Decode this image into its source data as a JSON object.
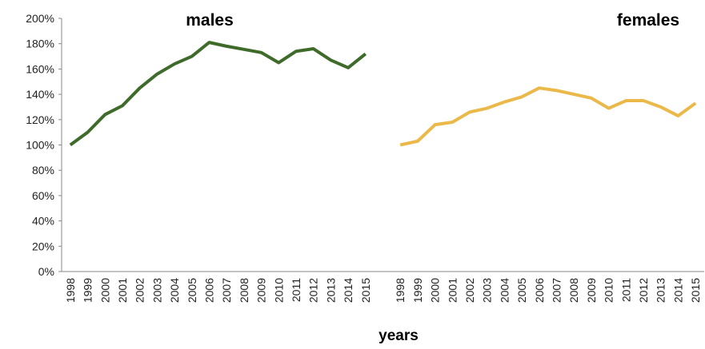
{
  "chart_data": {
    "type": "line",
    "x_label": "years",
    "categories": [
      "1998",
      "1999",
      "2000",
      "2001",
      "2002",
      "2003",
      "2004",
      "2005",
      "2006",
      "2007",
      "2008",
      "2009",
      "2010",
      "2011",
      "2012",
      "2013",
      "2014",
      "2015",
      null,
      "1998",
      "1999",
      "2000",
      "2001",
      "2002",
      "2003",
      "2004",
      "2005",
      "2006",
      "2007",
      "2008",
      "2009",
      "2010",
      "2011",
      "2012",
      "2013",
      "2014",
      "2015"
    ],
    "series": [
      {
        "name": "males",
        "color": "#3e6b2a",
        "values": [
          100,
          110,
          124,
          131,
          145,
          156,
          164,
          170,
          181,
          178,
          175.5,
          173,
          165,
          174,
          176,
          167,
          161,
          172,
          null,
          null,
          null,
          null,
          null,
          null,
          null,
          null,
          null,
          null,
          null,
          null,
          null,
          null,
          null,
          null,
          null,
          null,
          null
        ]
      },
      {
        "name": "females",
        "color": "#ebb84a",
        "values": [
          null,
          null,
          null,
          null,
          null,
          null,
          null,
          null,
          null,
          null,
          null,
          null,
          null,
          null,
          null,
          null,
          null,
          null,
          null,
          100,
          103,
          116,
          118,
          126,
          129,
          134,
          138,
          145,
          143,
          140,
          137,
          129,
          135,
          135,
          130,
          123,
          133
        ]
      }
    ],
    "ylim": [
      0,
      200
    ],
    "yticks": [
      {
        "value": 0,
        "label": "0%"
      },
      {
        "value": 20,
        "label": "20%"
      },
      {
        "value": 40,
        "label": "40%"
      },
      {
        "value": 60,
        "label": "60%"
      },
      {
        "value": 80,
        "label": "80%"
      },
      {
        "value": 100,
        "label": "100%"
      },
      {
        "value": 120,
        "label": "120%"
      },
      {
        "value": 140,
        "label": "140%"
      },
      {
        "value": 160,
        "label": "160%"
      },
      {
        "value": 180,
        "label": "180%"
      },
      {
        "value": 200,
        "label": "200%"
      }
    ],
    "grid": false
  }
}
